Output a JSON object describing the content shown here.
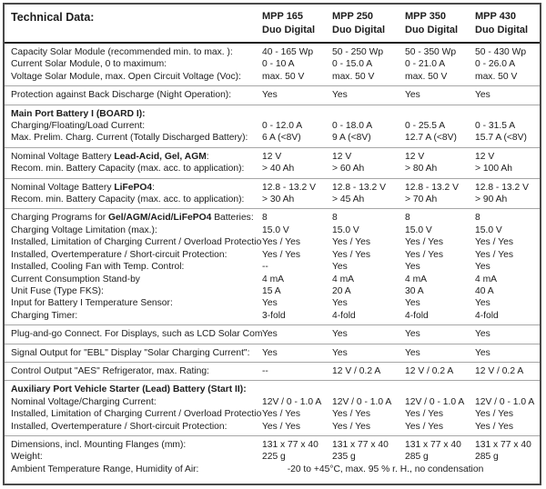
{
  "title": "Technical Data:",
  "columns": [
    {
      "model": "MPP 165",
      "variant": "Duo Digital"
    },
    {
      "model": "MPP 250",
      "variant": "Duo Digital"
    },
    {
      "model": "MPP 350",
      "variant": "Duo Digital"
    },
    {
      "model": "MPP 430",
      "variant": "Duo Digital"
    }
  ],
  "groups": [
    {
      "rows": [
        {
          "label": [
            {
              "t": "Capacity Solar Module (recommended min. to max. ):"
            }
          ],
          "values": [
            "40 - 165 Wp",
            "50 - 250 Wp",
            "50 - 350 Wp",
            "50 - 430 Wp"
          ]
        },
        {
          "label": [
            {
              "t": "Current Solar Module, 0 to maximum:"
            }
          ],
          "values": [
            "0 - 10 A",
            "0 - 15.0 A",
            "0 - 21.0 A",
            "0 - 26.0 A"
          ]
        },
        {
          "label": [
            {
              "t": "Voltage Solar Module, max. Open Circuit Voltage (Voc):"
            }
          ],
          "values": [
            "max. 50 V",
            "max. 50 V",
            "max. 50 V",
            "max. 50 V"
          ]
        }
      ]
    },
    {
      "rows": [
        {
          "label": [
            {
              "t": "Protection against Back Discharge (Night Operation):"
            }
          ],
          "values": [
            "Yes",
            "Yes",
            "Yes",
            "Yes"
          ]
        }
      ]
    },
    {
      "rows": [
        {
          "section": "Main Port Battery I (BOARD I):"
        },
        {
          "label": [
            {
              "t": "Charging/Floating/Load Current:"
            }
          ],
          "values": [
            "0 - 12.0 A",
            "0 - 18.0 A",
            "0 - 25.5 A",
            "0 - 31.5 A"
          ]
        },
        {
          "label": [
            {
              "t": "Max. Prelim. Charg. Current (Totally Discharged Battery):"
            }
          ],
          "values": [
            "6 A (<8V)",
            "9 A (<8V)",
            "12.7 A (<8V)",
            "15.7 A (<8V)"
          ]
        }
      ]
    },
    {
      "rows": [
        {
          "label": [
            {
              "t": "Nominal Voltage Battery "
            },
            {
              "t": "Lead-Acid, Gel, AGM",
              "b": true
            },
            {
              "t": ":"
            }
          ],
          "values": [
            "12 V",
            "12 V",
            "12 V",
            "12 V"
          ]
        },
        {
          "label": [
            {
              "t": "Recom. min. Battery Capacity (max. acc. to application):"
            }
          ],
          "values": [
            "> 40 Ah",
            "> 60 Ah",
            "> 80 Ah",
            "> 100 Ah"
          ]
        }
      ]
    },
    {
      "rows": [
        {
          "label": [
            {
              "t": "Nominal Voltage Battery "
            },
            {
              "t": "LiFePO4",
              "b": true
            },
            {
              "t": ":"
            }
          ],
          "values": [
            "12.8 - 13.2 V",
            "12.8 - 13.2 V",
            "12.8 - 13.2 V",
            "12.8 - 13.2 V"
          ]
        },
        {
          "label": [
            {
              "t": "Recom. min. Battery Capacity (max. acc. to application):"
            }
          ],
          "values": [
            "> 30 Ah",
            "> 45 Ah",
            "> 70 Ah",
            "> 90 Ah"
          ]
        }
      ]
    },
    {
      "rows": [
        {
          "label": [
            {
              "t": "Charging Programs for "
            },
            {
              "t": "Gel/AGM/Acid/LiFePO4",
              "b": true
            },
            {
              "t": " Batteries:"
            }
          ],
          "values": [
            "8",
            "8",
            "8",
            "8"
          ]
        },
        {
          "label": [
            {
              "t": "Charging Voltage Limitation (max.):"
            }
          ],
          "values": [
            "15.0 V",
            "15.0 V",
            "15.0 V",
            "15.0 V"
          ]
        },
        {
          "label": [
            {
              "t": "Installed, Limitation of Charging Current / Overload Protection:"
            }
          ],
          "values": [
            "Yes / Yes",
            "Yes / Yes",
            "Yes / Yes",
            "Yes / Yes"
          ]
        },
        {
          "label": [
            {
              "t": "Installed, Overtemperature / Short-circuit Protection:"
            }
          ],
          "values": [
            "Yes / Yes",
            "Yes / Yes",
            "Yes / Yes",
            "Yes / Yes"
          ]
        },
        {
          "label": [
            {
              "t": "Installed, Cooling Fan with Temp. Control:"
            }
          ],
          "values": [
            "--",
            "Yes",
            "Yes",
            "Yes"
          ]
        },
        {
          "label": [
            {
              "t": "Current Consumption Stand-by"
            }
          ],
          "values": [
            "4 mA",
            "4 mA",
            "4 mA",
            "4 mA"
          ]
        },
        {
          "label": [
            {
              "t": "Unit Fuse (Type FKS):"
            }
          ],
          "values": [
            "15 A",
            "20 A",
            "30 A",
            "40 A"
          ]
        },
        {
          "label": [
            {
              "t": "Input for Battery I Temperature Sensor:"
            }
          ],
          "values": [
            "Yes",
            "Yes",
            "Yes",
            "Yes"
          ]
        },
        {
          "label": [
            {
              "t": "Charging Timer:"
            }
          ],
          "values": [
            "3-fold",
            "4-fold",
            "4-fold",
            "4-fold"
          ]
        }
      ]
    },
    {
      "rows": [
        {
          "label": [
            {
              "t": "Plug-and-go Connect. For Displays, such as LCD Solar Comput. S:"
            }
          ],
          "values": [
            "Yes",
            "Yes",
            "Yes",
            "Yes"
          ]
        }
      ]
    },
    {
      "rows": [
        {
          "label": [
            {
              "t": "Signal Output for \"EBL\" Display \"Solar Charging Current\":"
            }
          ],
          "values": [
            "Yes",
            "Yes",
            "Yes",
            "Yes"
          ]
        }
      ]
    },
    {
      "rows": [
        {
          "label": [
            {
              "t": "Control Output \"AES\" Refrigerator, max. Rating:"
            }
          ],
          "values": [
            "--",
            "12 V / 0.2 A",
            "12 V / 0.2 A",
            "12 V / 0.2 A"
          ]
        }
      ]
    },
    {
      "rows": [
        {
          "section": "Auxiliary Port Vehicle Starter (Lead) Battery (Start II):"
        },
        {
          "label": [
            {
              "t": "Nominal Voltage/Charging Current:"
            }
          ],
          "values": [
            "12V / 0 - 1.0 A",
            "12V / 0 - 1.0 A",
            "12V / 0 - 1.0 A",
            "12V / 0 - 1.0 A"
          ]
        },
        {
          "label": [
            {
              "t": "Installed, Limitation of Charging Current / Overload Protection:"
            }
          ],
          "values": [
            "Yes / Yes",
            "Yes / Yes",
            "Yes / Yes",
            "Yes / Yes"
          ]
        },
        {
          "label": [
            {
              "t": "Installed, Overtemperature / Short-circuit Protection:"
            }
          ],
          "values": [
            "Yes / Yes",
            "Yes / Yes",
            "Yes / Yes",
            "Yes / Yes"
          ]
        }
      ]
    },
    {
      "rows": [
        {
          "label": [
            {
              "t": "Dimensions, incl. Mounting Flanges (mm):"
            }
          ],
          "values": [
            "131 x 77 x 40",
            "131 x 77 x 40",
            "131 x 77 x 40",
            "131 x 77 x 40"
          ]
        },
        {
          "label": [
            {
              "t": "Weight:"
            }
          ],
          "values": [
            "225 g",
            "235 g",
            "285 g",
            "285 g"
          ]
        },
        {
          "label": [
            {
              "t": "Ambient Temperature Range, Humidity of Air:"
            }
          ],
          "span_value": "-20 to +45°C, max. 95 % r. H., no condensation"
        }
      ]
    }
  ],
  "colors": {
    "outer_border": "#4a4a4a",
    "header_rule": "#1a1a1a",
    "group_rule": "#a6a6a6",
    "text": "#1c1c1c"
  }
}
